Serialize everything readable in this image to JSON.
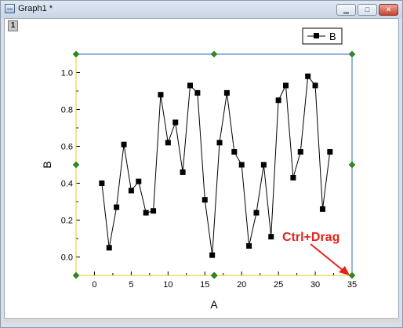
{
  "window": {
    "title": "Graph1 *",
    "icon": "graph-window-icon",
    "buttons": {
      "minimize": "minimize-icon",
      "maximize": "maximize-icon",
      "close": "close-icon"
    }
  },
  "layer": {
    "label": "1"
  },
  "annotation": {
    "text": "Ctrl+Drag",
    "color": "#e4231c"
  },
  "colors": {
    "frame": "#3366cc",
    "frame_bottom": "#e8c820",
    "handle": "#2e8b1f",
    "line": "#000000"
  },
  "chart_data": {
    "type": "line",
    "title": "",
    "xlabel": "A",
    "ylabel": "B",
    "xlim": [
      -2.5,
      35
    ],
    "ylim": [
      -0.1,
      1.1
    ],
    "xticks": [
      0,
      5,
      10,
      15,
      20,
      25,
      30,
      35
    ],
    "xtick_labels": [
      "0",
      "5",
      "10",
      "15",
      "20",
      "25",
      "30",
      "35"
    ],
    "yticks": [
      0.0,
      0.2,
      0.4,
      0.6,
      0.8,
      1.0
    ],
    "ytick_labels": [
      "0.0",
      "0.2",
      "0.4",
      "0.6",
      "0.8",
      "1.0"
    ],
    "legend": {
      "placement": "top-right",
      "entries": [
        "B"
      ]
    },
    "marker": "square",
    "series": [
      {
        "name": "B",
        "x": [
          1,
          2,
          3,
          4,
          5,
          6,
          7,
          8,
          9,
          10,
          11,
          12,
          13,
          14,
          15,
          16,
          17,
          18,
          19,
          20,
          21,
          22,
          23,
          24,
          25,
          26,
          27,
          28,
          29,
          30,
          31,
          32
        ],
        "y": [
          0.4,
          0.05,
          0.27,
          0.61,
          0.36,
          0.41,
          0.24,
          0.25,
          0.88,
          0.62,
          0.73,
          0.46,
          0.93,
          0.89,
          0.31,
          0.01,
          0.62,
          0.89,
          0.57,
          0.5,
          0.06,
          0.24,
          0.5,
          0.11,
          0.85,
          0.93,
          0.43,
          0.57,
          0.98,
          0.93,
          0.26,
          0.57
        ]
      }
    ]
  }
}
